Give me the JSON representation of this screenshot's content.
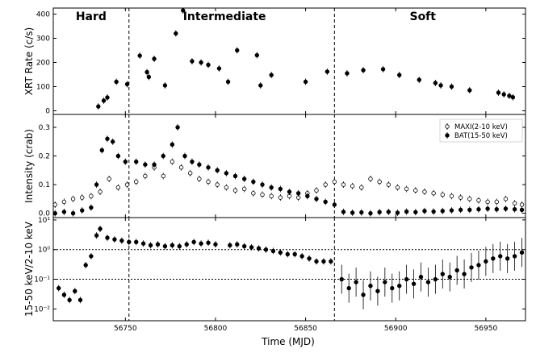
{
  "chart_data": {
    "type": "scatter",
    "x_label": "Time (MJD)",
    "x_range": [
      56710,
      56972
    ],
    "x_ticks": [
      56750,
      56800,
      56850,
      56900,
      56950
    ],
    "phase_boundaries": [
      56752,
      56866
    ],
    "phases": [
      {
        "label": "Hard",
        "x": 56731
      },
      {
        "label": "Intermediate",
        "x": 56805
      },
      {
        "label": "Soft",
        "x": 56915
      }
    ],
    "panels": [
      {
        "id": "xrt",
        "ylabel": "XRT Rate (c/s)",
        "scale": "linear",
        "ylim": [
          -15,
          425
        ],
        "yticks": [
          0,
          100,
          200,
          300,
          400
        ],
        "yticklabels": [
          "0",
          "100",
          "200",
          "300",
          "400"
        ],
        "series": [
          {
            "marker": "filled",
            "points": [
              [
                56735,
                18
              ],
              [
                56738,
                42
              ],
              [
                56740,
                55
              ],
              [
                56745,
                120
              ],
              [
                56751,
                110
              ],
              [
                56758,
                228
              ],
              [
                56762,
                160
              ],
              [
                56763,
                140
              ],
              [
                56766,
                215
              ],
              [
                56772,
                105
              ],
              [
                56778,
                320
              ],
              [
                56782,
                415
              ],
              [
                56787,
                205
              ],
              [
                56792,
                200
              ],
              [
                56796,
                190
              ],
              [
                56802,
                175
              ],
              [
                56807,
                120
              ],
              [
                56812,
                250
              ],
              [
                56823,
                230
              ],
              [
                56825,
                105
              ],
              [
                56831,
                148
              ],
              [
                56850,
                120
              ],
              [
                56862,
                162
              ],
              [
                56873,
                155
              ],
              [
                56882,
                168
              ],
              [
                56893,
                172
              ],
              [
                56902,
                148
              ],
              [
                56913,
                128
              ],
              [
                56922,
                115
              ],
              [
                56925,
                105
              ],
              [
                56931,
                100
              ],
              [
                56941,
                85
              ],
              [
                56957,
                75
              ],
              [
                56960,
                68
              ],
              [
                56963,
                62
              ],
              [
                56965,
                56
              ]
            ]
          }
        ]
      },
      {
        "id": "intensity",
        "ylabel": "Intensity (crab)",
        "scale": "linear",
        "ylim": [
          -0.015,
          0.345
        ],
        "yticks": [
          0.0,
          0.1,
          0.2,
          0.3
        ],
        "yticklabels": [
          "0.0",
          "0.1",
          "0.2",
          "0.3"
        ],
        "legend": {
          "position": "top-right"
        },
        "series": [
          {
            "name": "MAXI(2-10 keV)",
            "marker": "open",
            "points": [
              [
                56711,
                0.03
              ],
              [
                56716,
                0.04
              ],
              [
                56721,
                0.05
              ],
              [
                56726,
                0.055
              ],
              [
                56731,
                0.06
              ],
              [
                56736,
                0.075
              ],
              [
                56741,
                0.12
              ],
              [
                56746,
                0.09
              ],
              [
                56751,
                0.1
              ],
              [
                56756,
                0.11
              ],
              [
                56761,
                0.13
              ],
              [
                56766,
                0.16
              ],
              [
                56771,
                0.13
              ],
              [
                56776,
                0.18
              ],
              [
                56781,
                0.16
              ],
              [
                56786,
                0.14
              ],
              [
                56791,
                0.12
              ],
              [
                56796,
                0.11
              ],
              [
                56801,
                0.1
              ],
              [
                56806,
                0.09
              ],
              [
                56811,
                0.08
              ],
              [
                56816,
                0.085
              ],
              [
                56821,
                0.07
              ],
              [
                56826,
                0.065
              ],
              [
                56831,
                0.06
              ],
              [
                56836,
                0.055
              ],
              [
                56841,
                0.06
              ],
              [
                56846,
                0.055
              ],
              [
                56851,
                0.07
              ],
              [
                56856,
                0.08
              ],
              [
                56861,
                0.1
              ],
              [
                56866,
                0.11
              ],
              [
                56871,
                0.1
              ],
              [
                56876,
                0.095
              ],
              [
                56881,
                0.09
              ],
              [
                56886,
                0.12
              ],
              [
                56891,
                0.11
              ],
              [
                56896,
                0.1
              ],
              [
                56901,
                0.09
              ],
              [
                56906,
                0.085
              ],
              [
                56911,
                0.08
              ],
              [
                56916,
                0.075
              ],
              [
                56921,
                0.07
              ],
              [
                56926,
                0.065
              ],
              [
                56931,
                0.06
              ],
              [
                56936,
                0.055
              ],
              [
                56941,
                0.05
              ],
              [
                56946,
                0.045
              ],
              [
                56951,
                0.04
              ],
              [
                56956,
                0.04
              ],
              [
                56961,
                0.05
              ],
              [
                56966,
                0.035
              ],
              [
                56970,
                0.03
              ]
            ]
          },
          {
            "name": "BAT(15-50 keV)",
            "marker": "filled",
            "points": [
              [
                56711,
                0.0
              ],
              [
                56716,
                0.005
              ],
              [
                56721,
                0.0
              ],
              [
                56726,
                0.01
              ],
              [
                56731,
                0.02
              ],
              [
                56734,
                0.1
              ],
              [
                56737,
                0.22
              ],
              [
                56740,
                0.26
              ],
              [
                56743,
                0.25
              ],
              [
                56746,
                0.2
              ],
              [
                56750,
                0.18
              ],
              [
                56756,
                0.18
              ],
              [
                56761,
                0.17
              ],
              [
                56766,
                0.17
              ],
              [
                56771,
                0.2
              ],
              [
                56776,
                0.24
              ],
              [
                56779,
                0.3
              ],
              [
                56783,
                0.2
              ],
              [
                56787,
                0.18
              ],
              [
                56791,
                0.17
              ],
              [
                56796,
                0.16
              ],
              [
                56801,
                0.15
              ],
              [
                56806,
                0.14
              ],
              [
                56811,
                0.13
              ],
              [
                56816,
                0.12
              ],
              [
                56821,
                0.11
              ],
              [
                56826,
                0.1
              ],
              [
                56831,
                0.09
              ],
              [
                56836,
                0.085
              ],
              [
                56841,
                0.075
              ],
              [
                56846,
                0.07
              ],
              [
                56851,
                0.06
              ],
              [
                56856,
                0.05
              ],
              [
                56861,
                0.04
              ],
              [
                56866,
                0.03
              ],
              [
                56871,
                0.005
              ],
              [
                56876,
                0.002
              ],
              [
                56881,
                0.003
              ],
              [
                56886,
                0.0
              ],
              [
                56891,
                0.004
              ],
              [
                56896,
                0.005
              ],
              [
                56901,
                0.002
              ],
              [
                56906,
                0.006
              ],
              [
                56911,
                0.004
              ],
              [
                56916,
                0.008
              ],
              [
                56921,
                0.006
              ],
              [
                56926,
                0.008
              ],
              [
                56931,
                0.01
              ],
              [
                56936,
                0.012
              ],
              [
                56941,
                0.012
              ],
              [
                56946,
                0.014
              ],
              [
                56951,
                0.016
              ],
              [
                56956,
                0.014
              ],
              [
                56961,
                0.016
              ],
              [
                56966,
                0.014
              ],
              [
                56970,
                0.012
              ]
            ]
          }
        ]
      },
      {
        "id": "ratio",
        "ylabel": "15-50 keV/2-10 keV",
        "scale": "log",
        "ylim": [
          0.004,
          12
        ],
        "yticks": [
          0.01,
          0.1,
          1,
          10
        ],
        "yticklabels": [
          "10⁻²",
          "10⁻¹",
          "10⁰",
          "10¹"
        ],
        "reference_lines": [
          1,
          0.1
        ],
        "series": [
          {
            "marker": "filled",
            "points": [
              [
                56713,
                0.05
              ],
              [
                56716,
                0.03
              ],
              [
                56719,
                0.02
              ],
              [
                56722,
                0.04
              ],
              [
                56725,
                0.02
              ],
              [
                56728,
                0.3
              ],
              [
                56731,
                0.6
              ],
              [
                56734,
                3
              ],
              [
                56736,
                5
              ],
              [
                56740,
                2.5
              ],
              [
                56744,
                2.2
              ],
              [
                56748,
                2
              ],
              [
                56752,
                1.8
              ],
              [
                56756,
                1.8
              ],
              [
                56760,
                1.6
              ],
              [
                56764,
                1.4
              ],
              [
                56768,
                1.5
              ],
              [
                56772,
                1.3
              ],
              [
                56776,
                1.4
              ],
              [
                56780,
                1.3
              ],
              [
                56784,
                1.5
              ],
              [
                56788,
                1.8
              ],
              [
                56792,
                1.6
              ],
              [
                56796,
                1.7
              ],
              [
                56800,
                1.5
              ],
              [
                56808,
                1.4
              ],
              [
                56812,
                1.5
              ],
              [
                56816,
                1.3
              ],
              [
                56820,
                1.2
              ],
              [
                56824,
                1.1
              ],
              [
                56828,
                1.0
              ],
              [
                56832,
                0.9
              ],
              [
                56836,
                0.8
              ],
              [
                56840,
                0.7
              ],
              [
                56844,
                0.7
              ],
              [
                56848,
                0.6
              ],
              [
                56852,
                0.5
              ],
              [
                56856,
                0.4
              ],
              [
                56860,
                0.4
              ],
              [
                56864,
                0.4
              ],
              [
                56870,
                0.1
              ],
              [
                56874,
                0.05
              ],
              [
                56878,
                0.08
              ],
              [
                56882,
                0.03
              ],
              [
                56886,
                0.06
              ],
              [
                56890,
                0.04
              ],
              [
                56894,
                0.08
              ],
              [
                56898,
                0.05
              ],
              [
                56902,
                0.06
              ],
              [
                56906,
                0.1
              ],
              [
                56910,
                0.07
              ],
              [
                56914,
                0.12
              ],
              [
                56918,
                0.08
              ],
              [
                56922,
                0.1
              ],
              [
                56926,
                0.15
              ],
              [
                56930,
                0.12
              ],
              [
                56934,
                0.2
              ],
              [
                56938,
                0.15
              ],
              [
                56942,
                0.25
              ],
              [
                56946,
                0.3
              ],
              [
                56950,
                0.4
              ],
              [
                56954,
                0.5
              ],
              [
                56958,
                0.6
              ],
              [
                56962,
                0.5
              ],
              [
                56966,
                0.6
              ],
              [
                56970,
                0.8
              ]
            ]
          }
        ]
      }
    ]
  }
}
